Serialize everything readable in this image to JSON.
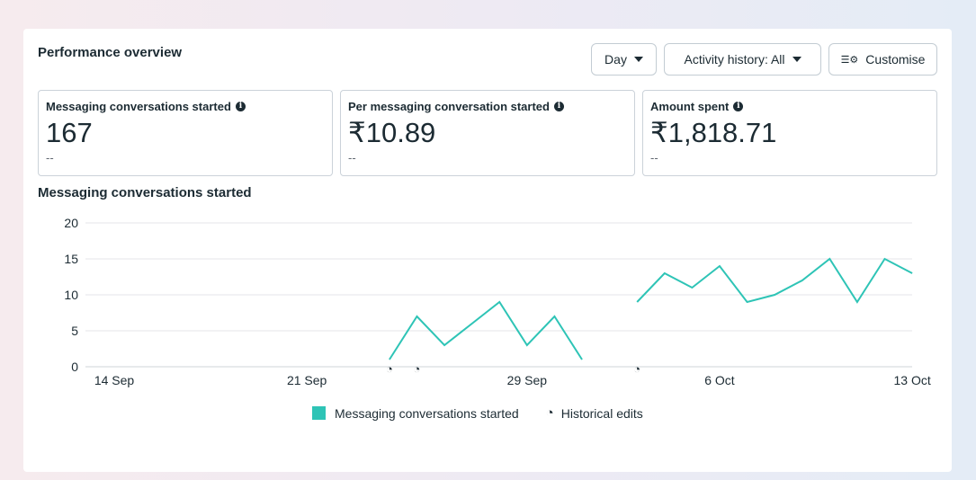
{
  "header": {
    "title": "Performance overview",
    "day_label": "Day",
    "activity_label": "Activity history: All",
    "customise_label": "Customise"
  },
  "metrics": [
    {
      "label": "Messaging conversations started",
      "value": "167",
      "comparison": "--"
    },
    {
      "label": "Per messaging conversation started",
      "value": "₹10.89",
      "comparison": "--"
    },
    {
      "label": "Amount spent",
      "value": "₹1,818.71",
      "comparison": "--"
    }
  ],
  "chart_data": {
    "type": "line",
    "title": "Messaging conversations started",
    "ylim": [
      0,
      20
    ],
    "yticks": [
      "0",
      "5",
      "10",
      "15",
      "20"
    ],
    "xticks": [
      "14 Sep",
      "21 Sep",
      "29 Sep",
      "6 Oct",
      "13 Oct"
    ],
    "grid": true,
    "legend_position": "bottom",
    "colors": {
      "series": "#2ec4b6"
    },
    "series": [
      {
        "name": "Messaging conversations started",
        "points": [
          [
            "24 Sep",
            1
          ],
          [
            "25 Sep",
            7
          ],
          [
            "26 Sep",
            3
          ],
          [
            "27 Sep",
            6
          ],
          [
            "28 Sep",
            9
          ],
          [
            "29 Sep",
            3
          ],
          [
            "30 Sep",
            7
          ],
          [
            "1 Oct",
            1
          ],
          [
            "2 Oct",
            null
          ],
          [
            "3 Oct",
            9
          ],
          [
            "4 Oct",
            13
          ],
          [
            "5 Oct",
            11
          ],
          [
            "6 Oct",
            14
          ],
          [
            "7 Oct",
            9
          ],
          [
            "8 Oct",
            10
          ],
          [
            "9 Oct",
            12
          ],
          [
            "10 Oct",
            15
          ],
          [
            "11 Oct",
            9
          ],
          [
            "12 Oct",
            15
          ],
          [
            "13 Oct",
            13
          ]
        ]
      }
    ],
    "historical_edits": [
      "24 Sep",
      "25 Sep",
      "3 Oct"
    ],
    "legend": [
      "Messaging conversations started",
      "Historical edits"
    ]
  }
}
